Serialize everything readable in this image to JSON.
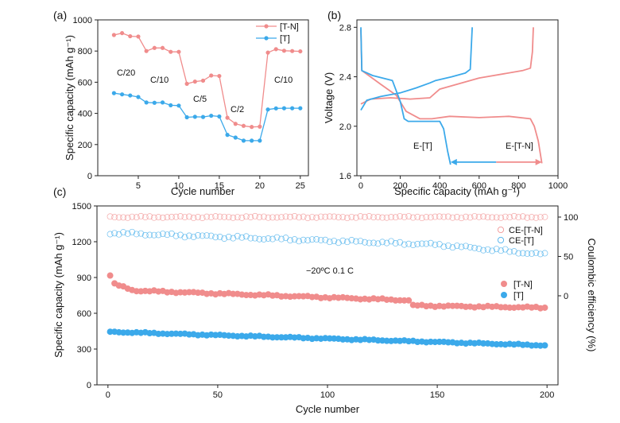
{
  "colors": {
    "pink": "#f08c8c",
    "blue": "#3ba9ea"
  },
  "chart_data": [
    {
      "panel": "(a)",
      "type": "line",
      "xlabel": "Cycle number",
      "ylabel": "Specific capacity (mAh g⁻¹)",
      "xlim": [
        0,
        26
      ],
      "ylim": [
        0,
        1000
      ],
      "xticks": [
        "5",
        "10",
        "15",
        "20",
        "25"
      ],
      "yticks": [
        "0",
        "200",
        "400",
        "600",
        "800",
        "1000"
      ],
      "legend_position": "top-right",
      "series": [
        {
          "name": "[T-N]",
          "x": [
            2,
            3,
            4,
            5,
            6,
            7,
            8,
            9,
            10,
            11,
            12,
            13,
            14,
            15,
            16,
            17,
            18,
            19,
            20,
            21,
            22,
            23,
            24,
            25
          ],
          "values": [
            903,
            915,
            895,
            893,
            800,
            820,
            820,
            795,
            795,
            590,
            604,
            610,
            643,
            640,
            372,
            333,
            320,
            313,
            315,
            790,
            812,
            802,
            800,
            798
          ]
        },
        {
          "name": "[T]",
          "x": [
            2,
            3,
            4,
            5,
            6,
            7,
            8,
            9,
            10,
            11,
            12,
            13,
            14,
            15,
            16,
            17,
            18,
            19,
            20,
            21,
            22,
            23,
            24,
            25
          ],
          "values": [
            530,
            522,
            515,
            505,
            470,
            468,
            470,
            452,
            450,
            375,
            378,
            377,
            385,
            380,
            262,
            245,
            225,
            225,
            225,
            425,
            432,
            433,
            433,
            433
          ]
        }
      ],
      "annotations": [
        "C/20",
        "C/10",
        "C/5",
        "C/2",
        "C/10"
      ]
    },
    {
      "panel": "(b)",
      "type": "line",
      "xlabel": "Specific capacity (mAh g⁻¹)",
      "ylabel": "Voltage (V)",
      "xlim": [
        -20,
        1000
      ],
      "ylim": [
        1.6,
        2.86
      ],
      "xticks": [
        "0",
        "200",
        "400",
        "600",
        "800",
        "1000"
      ],
      "yticks": [
        "1.6",
        "2.0",
        "2.4",
        "2.8"
      ],
      "series": [
        {
          "name": "E-[T-N] discharge",
          "points": [
            [
              0,
              2.78
            ],
            [
              5,
              2.45
            ],
            [
              40,
              2.41
            ],
            [
              100,
              2.34
            ],
            [
              180,
              2.25
            ],
            [
              230,
              2.12
            ],
            [
              300,
              2.06
            ],
            [
              360,
              2.06
            ],
            [
              450,
              2.08
            ],
            [
              600,
              2.07
            ],
            [
              750,
              2.08
            ],
            [
              860,
              2.06
            ],
            [
              880,
              2.0
            ],
            [
              900,
              1.88
            ],
            [
              918,
              1.7
            ]
          ]
        },
        {
          "name": "E-[T-N] charge",
          "points": [
            [
              0,
              2.18
            ],
            [
              50,
              2.22
            ],
            [
              150,
              2.23
            ],
            [
              250,
              2.22
            ],
            [
              350,
              2.23
            ],
            [
              400,
              2.3
            ],
            [
              600,
              2.39
            ],
            [
              820,
              2.45
            ],
            [
              860,
              2.47
            ],
            [
              870,
              2.6
            ],
            [
              875,
              2.8
            ]
          ]
        },
        {
          "name": "E-[T] discharge",
          "points": [
            [
              0,
              2.8
            ],
            [
              5,
              2.45
            ],
            [
              60,
              2.41
            ],
            [
              160,
              2.37
            ],
            [
              200,
              2.2
            ],
            [
              220,
              2.06
            ],
            [
              240,
              2.04
            ],
            [
              300,
              2.04
            ],
            [
              400,
              2.04
            ],
            [
              420,
              1.98
            ],
            [
              440,
              1.8
            ],
            [
              455,
              1.69
            ]
          ]
        },
        {
          "name": "E-[T] charge",
          "points": [
            [
              0,
              2.13
            ],
            [
              30,
              2.21
            ],
            [
              100,
              2.24
            ],
            [
              200,
              2.27
            ],
            [
              280,
              2.31
            ],
            [
              350,
              2.35
            ],
            [
              380,
              2.37
            ],
            [
              460,
              2.4
            ],
            [
              530,
              2.43
            ],
            [
              555,
              2.46
            ],
            [
              565,
              2.8
            ]
          ]
        }
      ],
      "labels": [
        "E-[T]",
        "E-[T-N]"
      ],
      "arrow": {
        "from": 455,
        "to": 918,
        "y": 1.71
      }
    },
    {
      "panel": "(c)",
      "type": "scatter",
      "xlabel": "Cycle number",
      "ylabel": "Specific capacity (mAh g⁻¹)",
      "y2label": "Coulombic efficiency (%)",
      "xlim": [
        -5,
        205
      ],
      "ylim": [
        0,
        1500
      ],
      "xticks": [
        "0",
        "50",
        "100",
        "150",
        "200"
      ],
      "yticks": [
        "0",
        "300",
        "600",
        "900",
        "1200",
        "1500"
      ],
      "y2ticks": [
        "0",
        "50",
        "100"
      ],
      "annotation": "−20ºC  0.1 C",
      "legend_position": "right",
      "series": [
        {
          "name": "CE-[T-N]",
          "axis": "y2",
          "start": 100,
          "end": 100,
          "style": "hollow-pink"
        },
        {
          "name": "CE-[T]",
          "axis": "y2",
          "start": 80,
          "end": 52,
          "style": "hollow-blue"
        },
        {
          "name": "[T-N]",
          "axis": "y",
          "start": 920,
          "end": 645,
          "style": "filled-pink"
        },
        {
          "name": "[T]",
          "axis": "y",
          "start": 450,
          "end": 325,
          "style": "filled-blue"
        }
      ]
    }
  ]
}
